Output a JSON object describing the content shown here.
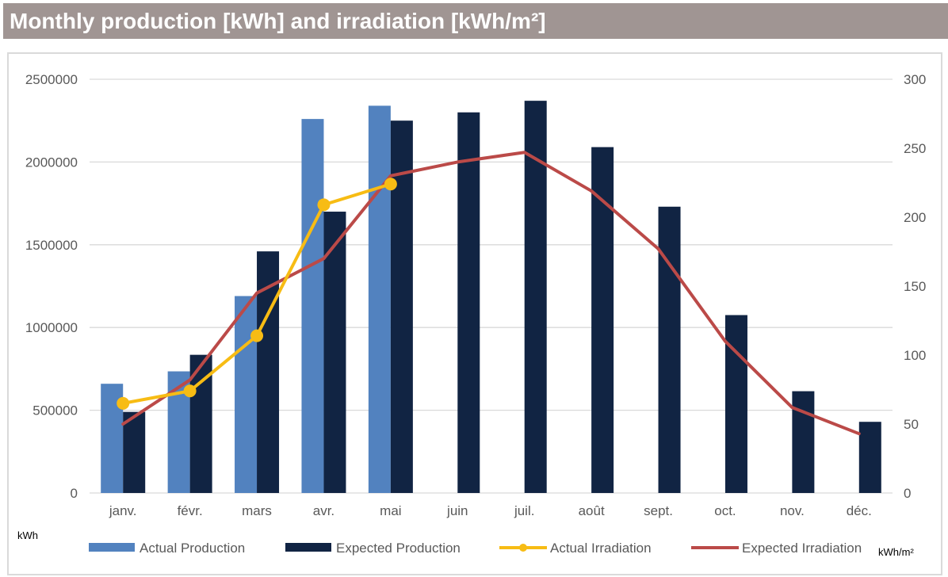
{
  "header": {
    "title": "Monthly production [kWh] and irradiation [kWh/m²]"
  },
  "colors": {
    "title_bar": "#a09593",
    "actual_production": "#5282bf",
    "expected_production": "#112443",
    "actual_irradiation": "#f7bc14",
    "expected_irradiation": "#bb4a48",
    "grid": "#d9d9d9",
    "tick_label": "#595959"
  },
  "chart_data": {
    "type": "bar",
    "categories": [
      "janv.",
      "févr.",
      "mars",
      "avr.",
      "mai",
      "juin",
      "juil.",
      "août",
      "sept.",
      "oct.",
      "nov.",
      "déc."
    ],
    "y_left": {
      "label": "kWh",
      "ylim": [
        0,
        2500000
      ],
      "ticks": [
        0,
        500000,
        1000000,
        1500000,
        2000000,
        2500000
      ],
      "tick_labels": [
        "0",
        "500000",
        "1000000",
        "1500000",
        "2000000",
        "2500000"
      ]
    },
    "y_right": {
      "label": "kWh/m²",
      "ylim": [
        0,
        300
      ],
      "ticks": [
        0,
        50,
        100,
        150,
        200,
        250,
        300
      ],
      "tick_labels": [
        "0",
        "50",
        "100",
        "150",
        "200",
        "250",
        "300"
      ]
    },
    "grid": true,
    "legend_position": "bottom",
    "series": [
      {
        "name": "Actual Production",
        "type": "bar",
        "axis": "left",
        "values": [
          660000,
          735000,
          1190000,
          2260000,
          2340000,
          null,
          null,
          null,
          null,
          null,
          null,
          null
        ]
      },
      {
        "name": "Expected Production",
        "type": "bar",
        "axis": "left",
        "values": [
          490000,
          835000,
          1460000,
          1700000,
          2250000,
          2300000,
          2370000,
          2090000,
          1730000,
          1075000,
          615000,
          430000
        ]
      },
      {
        "name": "Actual Irradiation",
        "type": "line-marker",
        "axis": "right",
        "values": [
          65,
          74,
          114,
          209,
          224,
          null,
          null,
          null,
          null,
          null,
          null,
          null
        ]
      },
      {
        "name": "Expected Irradiation",
        "type": "line",
        "axis": "right",
        "values": [
          50,
          82,
          145,
          170,
          230,
          240,
          247,
          219,
          177,
          110,
          62,
          43
        ]
      }
    ]
  }
}
